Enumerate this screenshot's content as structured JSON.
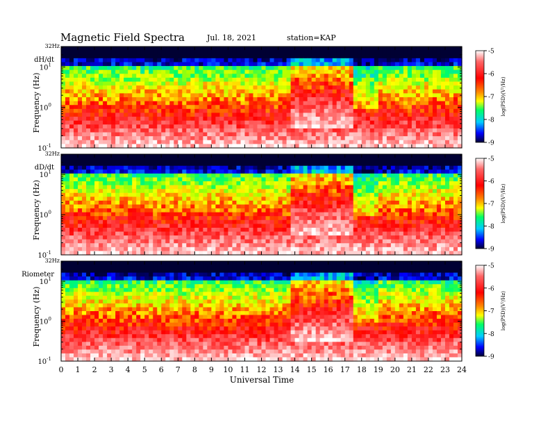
{
  "header": {
    "title": "Magnetic Field Spectra",
    "date": "Jul. 18, 2021",
    "station": "station=KAP"
  },
  "chart_data": {
    "type": "heatmap",
    "xlabel": "Universal Time",
    "xlim": [
      0,
      24
    ],
    "x_ticks": [
      "0",
      "1",
      "2",
      "3",
      "4",
      "5",
      "6",
      "7",
      "8",
      "9",
      "10",
      "11",
      "12",
      "13",
      "14",
      "15",
      "16",
      "17",
      "18",
      "19",
      "20",
      "21",
      "22",
      "23",
      "24"
    ],
    "y_scale": "log",
    "ylabel": "Frequency (Hz)",
    "y_ticks": [
      {
        "value": 0.1,
        "base": "10",
        "exp": "-1"
      },
      {
        "value": 1,
        "base": "10",
        "exp": "0"
      },
      {
        "value": 10,
        "base": "10",
        "exp": "1"
      }
    ],
    "y_top_label": "32Hz",
    "colorbar": {
      "label": "log(PSD)(V²/Hz)",
      "ticks": [
        "-5",
        "-6",
        "-7",
        "-8",
        "-9"
      ],
      "range": [
        -9,
        -5
      ],
      "colors": [
        "#000033",
        "#0000ff",
        "#00ccff",
        "#00ff66",
        "#aaff00",
        "#ffff00",
        "#ff8800",
        "#ff0000",
        "#ff6666",
        "#ffffff"
      ]
    },
    "panels": [
      {
        "name": "dH/dt"
      },
      {
        "name": "dD/dt"
      },
      {
        "name": "Riometer"
      }
    ]
  }
}
